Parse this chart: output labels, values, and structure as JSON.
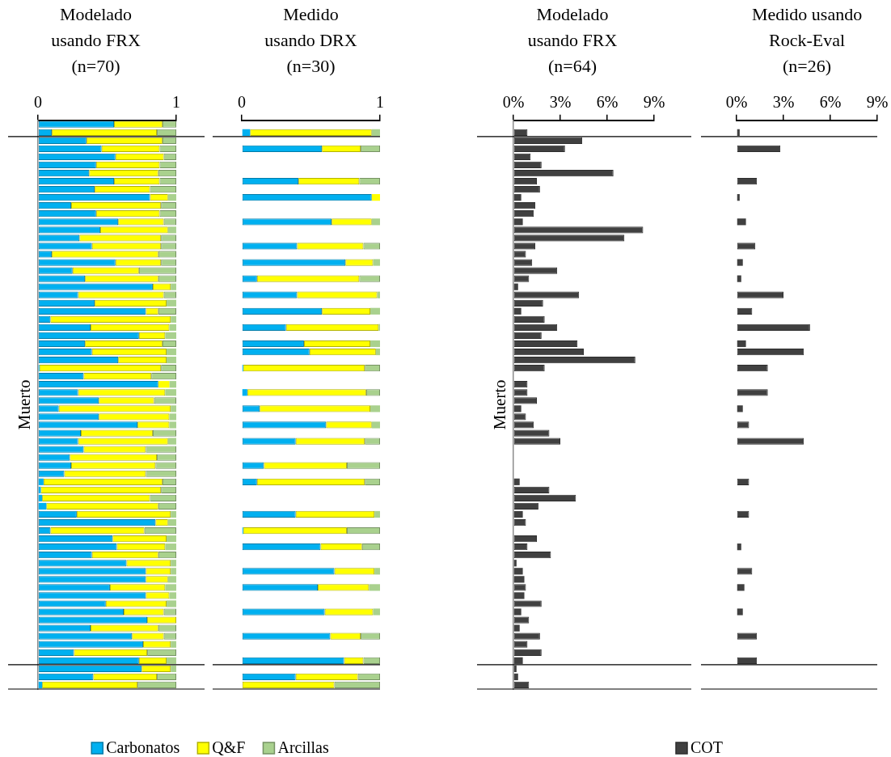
{
  "chart_data": [
    {
      "type": "bar",
      "orientation": "horizontal",
      "stacked": true,
      "title": "Modelado\nusando FRX\n(n=70)",
      "ylabel": "Muerto",
      "legend": "bottom",
      "categories": [
        null,
        null,
        null,
        null,
        null,
        null,
        null,
        null,
        null,
        null,
        null,
        null,
        null,
        null,
        null,
        null,
        null,
        null,
        null,
        null,
        null,
        null,
        null,
        null,
        null,
        null,
        null,
        null,
        null,
        null,
        null,
        null,
        null,
        null,
        null,
        null,
        null,
        null,
        null,
        null,
        null,
        null,
        null,
        null,
        null,
        null,
        null,
        null,
        null,
        null,
        null,
        null,
        null,
        null,
        null,
        null,
        null,
        null,
        null,
        null,
        null,
        null,
        null,
        null,
        null,
        null,
        null,
        null,
        null,
        null
      ],
      "xlim": [
        0,
        1
      ],
      "xticks": [
        {
          "value": 0,
          "label": "0"
        },
        {
          "value": 1,
          "label": "1"
        }
      ],
      "series": [
        {
          "name": "Carbonatos",
          "color": "#00b0f0",
          "values": [
            0.55,
            0.1,
            0.35,
            0.46,
            0.56,
            0.42,
            0.37,
            0.55,
            0.41,
            0.81,
            0.24,
            0.42,
            0.58,
            0.45,
            0.3,
            0.39,
            0.1,
            0.56,
            0.25,
            0.34,
            0.83,
            0.29,
            0.41,
            0.78,
            0.09,
            0.38,
            0.73,
            0.34,
            0.39,
            0.58,
            0.01,
            0.33,
            0.87,
            0.29,
            0.44,
            0.15,
            0.44,
            0.72,
            0.31,
            0.29,
            0.33,
            0.23,
            0.24,
            0.19,
            0.04,
            0.02,
            0.03,
            0.06,
            0.28,
            0.85,
            0.09,
            0.54,
            0.57,
            0.39,
            0.64,
            0.78,
            0.78,
            0.52,
            0.78,
            0.49,
            0.62,
            0.79,
            0.38,
            0.68,
            0.76,
            0.26,
            0.73,
            0.75,
            0.4,
            0.03
          ]
        },
        {
          "name": "Q&F",
          "color": "#ffff00",
          "values": [
            0.35,
            0.76,
            0.55,
            0.42,
            0.35,
            0.46,
            0.5,
            0.33,
            0.4,
            0.13,
            0.65,
            0.46,
            0.33,
            0.49,
            0.59,
            0.5,
            0.77,
            0.33,
            0.48,
            0.53,
            0.13,
            0.62,
            0.52,
            0.09,
            0.87,
            0.57,
            0.19,
            0.56,
            0.54,
            0.35,
            0.88,
            0.49,
            0.08,
            0.63,
            0.4,
            0.81,
            0.51,
            0.23,
            0.52,
            0.65,
            0.45,
            0.63,
            0.61,
            0.59,
            0.86,
            0.87,
            0.78,
            0.81,
            0.68,
            0.09,
            0.68,
            0.39,
            0.35,
            0.48,
            0.32,
            0.18,
            0.16,
            0.4,
            0.17,
            0.44,
            0.29,
            0.21,
            0.49,
            0.23,
            0.2,
            0.53,
            0.2,
            0.21,
            0.46,
            0.69
          ]
        },
        {
          "name": "Arcillas",
          "color": "#a9d18e",
          "values": [
            0.1,
            0.14,
            0.1,
            0.12,
            0.09,
            0.12,
            0.13,
            0.12,
            0.19,
            0.06,
            0.11,
            0.12,
            0.09,
            0.06,
            0.11,
            0.11,
            0.13,
            0.11,
            0.27,
            0.13,
            0.04,
            0.09,
            0.07,
            0.13,
            0.04,
            0.05,
            0.08,
            0.1,
            0.07,
            0.07,
            0.11,
            0.18,
            0.05,
            0.08,
            0.16,
            0.04,
            0.05,
            0.05,
            0.17,
            0.06,
            0.22,
            0.14,
            0.15,
            0.22,
            0.1,
            0.11,
            0.19,
            0.13,
            0.04,
            0.06,
            0.23,
            0.07,
            0.08,
            0.13,
            0.04,
            0.04,
            0.06,
            0.08,
            0.05,
            0.07,
            0.09,
            0,
            0.13,
            0.09,
            0.04,
            0.21,
            0.07,
            0.04,
            0.14,
            0.28
          ]
        }
      ]
    },
    {
      "type": "bar",
      "orientation": "horizontal",
      "stacked": true,
      "title": "Medido\nusando DRX\n(n=30)",
      "categories": [
        null,
        null,
        null,
        null,
        null,
        null,
        null,
        null,
        null,
        null,
        null,
        null,
        null,
        null,
        null,
        null,
        null,
        null,
        null,
        null,
        null,
        null,
        null,
        null,
        null,
        null,
        null,
        null,
        null,
        null,
        null,
        null,
        null,
        null,
        null,
        null,
        null,
        null,
        null,
        null,
        null,
        null,
        null,
        null,
        null,
        null,
        null,
        null,
        null,
        null,
        null,
        null,
        null,
        null,
        null,
        null,
        null,
        null,
        null,
        null,
        null,
        null,
        null,
        null,
        null,
        null,
        null,
        null,
        null,
        null
      ],
      "xlim": [
        0,
        1
      ],
      "xticks": [
        {
          "value": 0,
          "label": "0"
        },
        {
          "value": 1,
          "label": "1"
        }
      ],
      "series": [
        {
          "color": "#00b0f0",
          "values": [
            null,
            0.06,
            null,
            0.58,
            null,
            null,
            null,
            0.41,
            null,
            0.94,
            null,
            null,
            0.65,
            null,
            null,
            0.4,
            null,
            0.75,
            null,
            0.11,
            null,
            0.4,
            null,
            0.58,
            null,
            0.32,
            null,
            0.45,
            0.49,
            null,
            0.01,
            null,
            null,
            0.04,
            null,
            0.13,
            null,
            0.61,
            null,
            0.39,
            null,
            null,
            0.16,
            null,
            0.11,
            null,
            null,
            null,
            0.39,
            null,
            0.01,
            null,
            0.57,
            null,
            null,
            0.67,
            null,
            0.55,
            null,
            null,
            0.6,
            null,
            null,
            0.64,
            null,
            null,
            0.74,
            null,
            0.39,
            0
          ]
        },
        {
          "color": "#ffff00",
          "values": [
            null,
            0.88,
            null,
            0.28,
            null,
            null,
            null,
            0.44,
            null,
            0.06,
            null,
            null,
            0.29,
            null,
            null,
            0.48,
            null,
            0.2,
            null,
            0.74,
            null,
            0.58,
            null,
            0.35,
            null,
            0.67,
            null,
            0.48,
            0.48,
            null,
            0.88,
            null,
            null,
            0.86,
            null,
            0.8,
            null,
            0.33,
            null,
            0.5,
            null,
            null,
            0.6,
            null,
            0.78,
            null,
            null,
            null,
            0.57,
            null,
            0.75,
            null,
            0.3,
            null,
            null,
            0.29,
            null,
            0.37,
            null,
            null,
            0.35,
            null,
            null,
            0.22,
            null,
            null,
            0.14,
            null,
            0.45,
            0.67
          ]
        },
        {
          "color": "#a9d18e",
          "values": [
            null,
            0.06,
            null,
            0.14,
            null,
            null,
            null,
            0.15,
            null,
            0,
            null,
            null,
            0.06,
            null,
            null,
            0.12,
            null,
            0.05,
            null,
            0.15,
            null,
            0.02,
            null,
            0.07,
            null,
            0.01,
            null,
            0.07,
            0.03,
            null,
            0.11,
            null,
            null,
            0.1,
            null,
            0.07,
            null,
            0.06,
            null,
            0.11,
            null,
            null,
            0.24,
            null,
            0.11,
            null,
            null,
            null,
            0.04,
            null,
            0.24,
            null,
            0.13,
            null,
            null,
            0.04,
            null,
            0.08,
            null,
            null,
            0.05,
            null,
            null,
            0.14,
            null,
            null,
            0.12,
            null,
            0.16,
            0.33
          ]
        }
      ]
    },
    {
      "type": "bar",
      "orientation": "horizontal",
      "title": "Modelado\nusando FRX\n(n=64)",
      "ylabel": "Muerto",
      "legend": "bottom",
      "categories": [
        null,
        null,
        null,
        null,
        null,
        null,
        null,
        null,
        null,
        null,
        null,
        null,
        null,
        null,
        null,
        null,
        null,
        null,
        null,
        null,
        null,
        null,
        null,
        null,
        null,
        null,
        null,
        null,
        null,
        null,
        null,
        null,
        null,
        null,
        null,
        null,
        null,
        null,
        null,
        null,
        null,
        null,
        null,
        null,
        null,
        null,
        null,
        null,
        null,
        null,
        null,
        null,
        null,
        null,
        null,
        null,
        null,
        null,
        null,
        null,
        null,
        null,
        null,
        null,
        null,
        null,
        null,
        null,
        null,
        null
      ],
      "xlim": [
        0,
        9
      ],
      "xticks": [
        {
          "value": 0,
          "label": "0%"
        },
        {
          "value": 3,
          "label": "3%"
        },
        {
          "value": 6,
          "label": "6%"
        },
        {
          "value": 9,
          "label": "9%"
        }
      ],
      "series": [
        {
          "name": "COT",
          "color": "#404040",
          "values": [
            null,
            0.9,
            4.4,
            3.3,
            1.1,
            1.8,
            6.4,
            1.5,
            1.7,
            0.5,
            1.4,
            1.3,
            0.6,
            8.3,
            7.1,
            1.4,
            0.8,
            1.2,
            2.8,
            1.0,
            0.3,
            4.2,
            1.9,
            0.5,
            2.0,
            2.8,
            1.8,
            4.1,
            4.5,
            7.8,
            2.0,
            null,
            0.9,
            0.9,
            1.5,
            0.5,
            0.8,
            1.3,
            2.3,
            3.0,
            null,
            null,
            null,
            null,
            0.4,
            2.3,
            4.0,
            1.6,
            0.6,
            0.8,
            null,
            1.5,
            0.9,
            2.4,
            0.2,
            0.6,
            0.7,
            0.8,
            0.7,
            1.8,
            0.5,
            1.0,
            0.4,
            1.7,
            0.9,
            1.8,
            0.6,
            0.2,
            0.3,
            1.0
          ]
        }
      ]
    },
    {
      "type": "bar",
      "orientation": "horizontal",
      "title": "Medido usando\nRock-Eval\n(n=26)",
      "categories": [
        null,
        null,
        null,
        null,
        null,
        null,
        null,
        null,
        null,
        null,
        null,
        null,
        null,
        null,
        null,
        null,
        null,
        null,
        null,
        null,
        null,
        null,
        null,
        null,
        null,
        null,
        null,
        null,
        null,
        null,
        null,
        null,
        null,
        null,
        null,
        null,
        null,
        null,
        null,
        null,
        null,
        null,
        null,
        null,
        null,
        null,
        null,
        null,
        null,
        null,
        null,
        null,
        null,
        null,
        null,
        null,
        null,
        null,
        null,
        null,
        null,
        null,
        null,
        null,
        null,
        null,
        null,
        null,
        null,
        null
      ],
      "xlim": [
        0,
        9
      ],
      "xticks": [
        {
          "value": 0,
          "label": "0%"
        },
        {
          "value": 3,
          "label": "3%"
        },
        {
          "value": 6,
          "label": "6%"
        },
        {
          "value": 9,
          "label": "9%"
        }
      ],
      "series": [
        {
          "color": "#404040",
          "values": [
            null,
            0.2,
            null,
            2.8,
            null,
            null,
            null,
            1.3,
            null,
            0.2,
            null,
            null,
            0.6,
            null,
            null,
            1.2,
            null,
            0.4,
            null,
            0.3,
            null,
            3.0,
            null,
            1.0,
            null,
            4.7,
            null,
            0.6,
            4.3,
            null,
            2.0,
            null,
            null,
            2.0,
            null,
            0.4,
            null,
            0.8,
            null,
            4.3,
            null,
            null,
            null,
            null,
            0.8,
            null,
            null,
            null,
            0.8,
            null,
            null,
            null,
            0.3,
            null,
            null,
            1.0,
            null,
            0.5,
            null,
            null,
            0.4,
            null,
            null,
            1.3,
            null,
            null,
            1.3,
            null,
            null,
            null
          ]
        }
      ]
    }
  ]
}
